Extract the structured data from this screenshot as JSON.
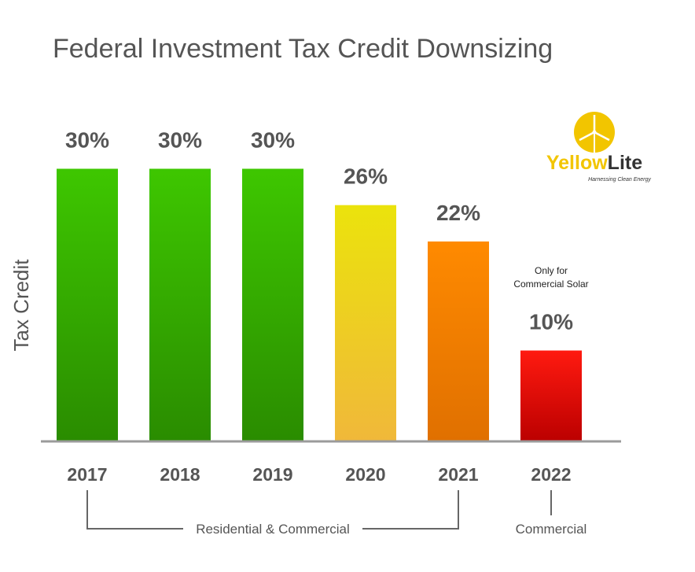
{
  "chart_data": {
    "type": "bar",
    "title": "Federal Investment Tax Credit Downsizing",
    "ylabel": "Tax Credit",
    "xlabel": "",
    "categories": [
      "2017",
      "2018",
      "2019",
      "2020",
      "2021",
      "2022"
    ],
    "values": [
      30,
      30,
      30,
      26,
      22,
      10
    ],
    "data_labels": [
      "30%",
      "30%",
      "30%",
      "26%",
      "22%",
      "10%"
    ],
    "bar_colors": [
      {
        "top": "#3ec700",
        "bottom": "#2a8c00"
      },
      {
        "top": "#3ec700",
        "bottom": "#2a8c00"
      },
      {
        "top": "#3ec700",
        "bottom": "#2a8c00"
      },
      {
        "top": "#ebe30c",
        "bottom": "#f0b83a"
      },
      {
        "top": "#ff8a00",
        "bottom": "#e07000"
      },
      {
        "top": "#ff1a10",
        "bottom": "#bb0000"
      }
    ],
    "ylim": [
      0,
      34
    ],
    "grid": false,
    "annotation": {
      "category": "2022",
      "lines": [
        "Only for",
        "Commercial Solar"
      ]
    },
    "groups": [
      {
        "label": "Residential & Commercial",
        "from": "2017",
        "to": "2021"
      },
      {
        "label": "Commercial",
        "from": "2022",
        "to": "2022"
      }
    ]
  },
  "logo": {
    "text_yellow": "Yellow",
    "text_dark": "Lite",
    "tagline": "Harnessing Clean Energy",
    "color": "#f2c500"
  }
}
